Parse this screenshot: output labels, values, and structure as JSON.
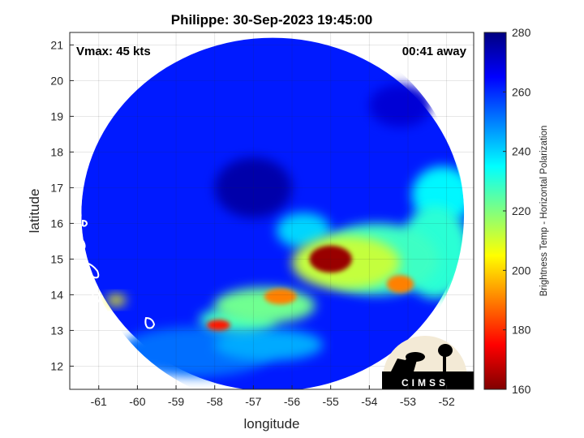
{
  "chart_data": {
    "type": "heatmap",
    "title": "Philippe: 30-Sep-2023 19:45:00",
    "xlabel": "longitude",
    "ylabel": "latitude",
    "xlim": [
      -61.75,
      -51.3
    ],
    "ylim": [
      11.35,
      21.35
    ],
    "xticks": [
      -61,
      -60,
      -59,
      -58,
      -57,
      -56,
      -55,
      -54,
      -53,
      -52
    ],
    "yticks": [
      12,
      13,
      14,
      15,
      16,
      17,
      18,
      19,
      20,
      21
    ],
    "grid": true,
    "annotations": {
      "vmax": "Vmax: 45 kts",
      "time_away": "00:41 away"
    },
    "colorbar": {
      "label": "Brightness Temp - Horizontal Polarization",
      "range": [
        160,
        280
      ],
      "ticks": [
        160,
        180,
        200,
        220,
        240,
        260,
        280
      ],
      "colormap": "jet"
    },
    "background_value": 262,
    "swath": {
      "center": [
        -56.5,
        16.25
      ],
      "radius_deg": 4.95
    },
    "features": [
      {
        "lon": -55.0,
        "lat": 15.0,
        "rx": 0.55,
        "ry": 0.38,
        "value": 163
      },
      {
        "lon": -54.6,
        "lat": 14.9,
        "rx": 1.4,
        "ry": 0.75,
        "value": 212
      },
      {
        "lon": -53.8,
        "lat": 15.0,
        "rx": 1.6,
        "ry": 1.0,
        "value": 228
      },
      {
        "lon": -53.2,
        "lat": 14.3,
        "rx": 0.35,
        "ry": 0.25,
        "value": 190
      },
      {
        "lon": -52.3,
        "lat": 15.2,
        "rx": 0.9,
        "ry": 1.3,
        "value": 230
      },
      {
        "lon": -52.1,
        "lat": 16.8,
        "rx": 0.8,
        "ry": 0.8,
        "value": 236
      },
      {
        "lon": -56.3,
        "lat": 13.95,
        "rx": 0.42,
        "ry": 0.22,
        "value": 190
      },
      {
        "lon": -56.7,
        "lat": 13.7,
        "rx": 1.3,
        "ry": 0.5,
        "value": 222
      },
      {
        "lon": -57.9,
        "lat": 13.15,
        "rx": 0.3,
        "ry": 0.15,
        "value": 178
      },
      {
        "lon": -57.4,
        "lat": 13.3,
        "rx": 1.0,
        "ry": 0.35,
        "value": 228
      },
      {
        "lon": -60.55,
        "lat": 13.85,
        "rx": 0.25,
        "ry": 0.15,
        "value": 205
      },
      {
        "lon": -56.6,
        "lat": 12.6,
        "rx": 1.4,
        "ry": 0.45,
        "value": 245
      },
      {
        "lon": -58.5,
        "lat": 12.4,
        "rx": 2.0,
        "ry": 0.7,
        "value": 252
      },
      {
        "lon": -55.7,
        "lat": 15.8,
        "rx": 0.7,
        "ry": 0.5,
        "value": 240
      },
      {
        "lon": -57.0,
        "lat": 17.0,
        "rx": 1.0,
        "ry": 0.85,
        "value": 275
      },
      {
        "lon": -53.2,
        "lat": 19.3,
        "rx": 0.8,
        "ry": 0.6,
        "value": 270
      }
    ],
    "logo_text": "CIMSS"
  }
}
